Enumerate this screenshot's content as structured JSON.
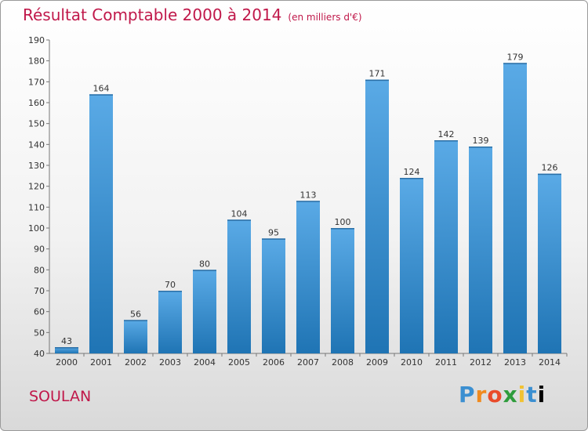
{
  "header": {
    "title": "Résultat Comptable 2000 à 2014",
    "unit": "(en milliers d'€)"
  },
  "footer": {
    "commune": "SOULAN",
    "logo_letters": [
      "P",
      "r",
      "o",
      "x",
      "i",
      "t",
      "i"
    ]
  },
  "colors": {
    "title": "#c0184a",
    "bar_top": "#5aaae6",
    "bar_bottom": "#1f74b4"
  },
  "chart_data": {
    "type": "bar",
    "title": "Résultat Comptable 2000 à 2014",
    "xlabel": "",
    "ylabel": "",
    "categories": [
      "2000",
      "2001",
      "2002",
      "2003",
      "2004",
      "2005",
      "2006",
      "2007",
      "2008",
      "2009",
      "2010",
      "2011",
      "2012",
      "2013",
      "2014"
    ],
    "values": [
      43,
      164,
      56,
      70,
      80,
      104,
      95,
      113,
      100,
      171,
      124,
      142,
      139,
      179,
      126
    ],
    "ylim": [
      40,
      190
    ],
    "yticks": [
      40,
      50,
      60,
      70,
      80,
      90,
      100,
      110,
      120,
      130,
      140,
      150,
      160,
      170,
      180,
      190
    ],
    "grid": false,
    "legend": "none"
  }
}
